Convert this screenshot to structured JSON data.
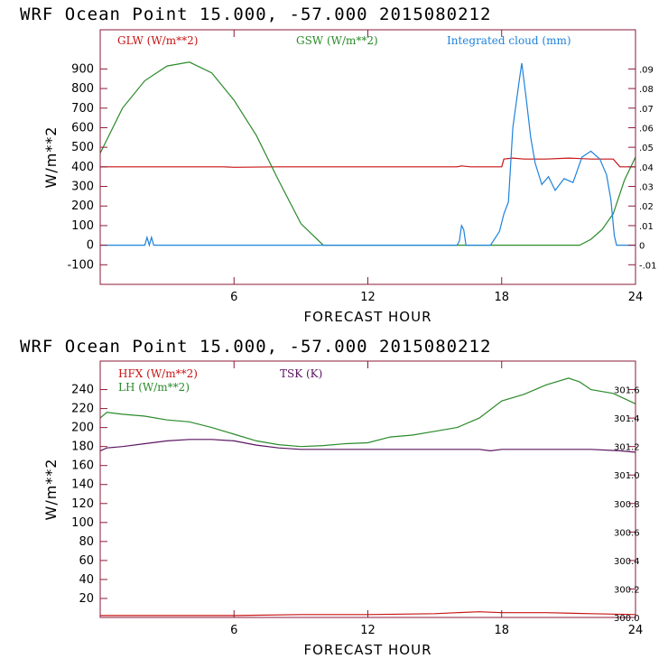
{
  "chart_data": [
    {
      "type": "line",
      "title": "WRF   Ocean Point   15.000, -57.000  2015080212",
      "xlabel": "FORECAST HOUR",
      "ylabel": "W/m**2",
      "xlim": [
        0,
        24
      ],
      "ylim": [
        -200,
        1100
      ],
      "xticks": [
        6,
        12,
        18,
        24
      ],
      "yticks": [
        -100,
        0,
        100,
        200,
        300,
        400,
        500,
        600,
        700,
        800,
        900
      ],
      "y2lim": [
        -0.02,
        0.11
      ],
      "y2ticks": [
        -0.01,
        0,
        0.01,
        0.02,
        0.03,
        0.04,
        0.05,
        0.06,
        0.07,
        0.08,
        0.09
      ],
      "y2ticklabels": [
        "-.01",
        "0",
        ".01",
        ".02",
        ".03",
        ".04",
        ".05",
        ".06",
        ".07",
        ".08",
        ".09"
      ],
      "axis_color": "#8b1a3a",
      "series": [
        {
          "name": "GLW (W/m**2)",
          "color": "#c81414",
          "axis": "left",
          "x": [
            0,
            2,
            4,
            5.5,
            6,
            8,
            10,
            12,
            14,
            16,
            16.2,
            16.6,
            17,
            18,
            18.1,
            18.5,
            19,
            20,
            21,
            22,
            23,
            23.3,
            24
          ],
          "y": [
            400,
            400,
            400,
            400,
            398,
            400,
            400,
            400,
            400,
            400,
            405,
            400,
            400,
            400,
            440,
            445,
            440,
            440,
            445,
            440,
            440,
            400,
            400
          ]
        },
        {
          "name": "GSW (W/m**2)",
          "color": "#2a8a2a",
          "axis": "left",
          "x": [
            0,
            1,
            2,
            3,
            4,
            5,
            6,
            7,
            8,
            9,
            10,
            10.3,
            12,
            14,
            16,
            18,
            20,
            21.5,
            22,
            22.5,
            23,
            23.5,
            24
          ],
          "y": [
            470,
            700,
            840,
            915,
            935,
            880,
            740,
            560,
            330,
            110,
            0,
            0,
            0,
            0,
            0,
            0,
            0,
            0,
            30,
            80,
            160,
            330,
            450
          ]
        },
        {
          "name": "Integrated cloud (mm)",
          "color": "#1e82dc",
          "axis": "right",
          "x": [
            0,
            2,
            2.1,
            2.2,
            2.3,
            2.4,
            16,
            16.1,
            16.2,
            16.3,
            16.4,
            16.5,
            17.5,
            17.9,
            18.1,
            18.3,
            18.5,
            18.8,
            18.9,
            19.1,
            19.3,
            19.5,
            19.8,
            20.1,
            20.4,
            20.8,
            21.2,
            21.6,
            22,
            22.4,
            22.7,
            22.9,
            23.05,
            23.15,
            24
          ],
          "y": [
            0,
            0,
            0.004,
            0,
            0.004,
            0,
            0,
            0.002,
            0.01,
            0.008,
            0,
            0,
            0,
            0.007,
            0.016,
            0.022,
            0.06,
            0.085,
            0.093,
            0.075,
            0.055,
            0.042,
            0.031,
            0.035,
            0.028,
            0.034,
            0.032,
            0.045,
            0.048,
            0.044,
            0.036,
            0.023,
            0.005,
            0,
            0
          ]
        }
      ]
    },
    {
      "type": "line",
      "title": "WRF   Ocean Point   15.000, -57.000  2015080212",
      "xlabel": "FORECAST HOUR",
      "ylabel": "W/m**2",
      "xlim": [
        0,
        24
      ],
      "ylim": [
        0,
        270
      ],
      "xticks": [
        6,
        12,
        18,
        24
      ],
      "yticks": [
        20,
        40,
        60,
        80,
        100,
        120,
        140,
        160,
        180,
        200,
        220,
        240
      ],
      "y2lim": [
        300.0,
        301.8
      ],
      "y2ticks": [
        300.0,
        300.2,
        300.4,
        300.6,
        300.8,
        301.0,
        301.2,
        301.4,
        301.6
      ],
      "y2ticklabels": [
        "300.0",
        "300.2",
        "300.4",
        "300.6",
        "300.8",
        "301.0",
        "301.2",
        "301.4",
        "301.6"
      ],
      "axis_color": "#8b1a3a",
      "series": [
        {
          "name": "HFX (W/m**2)",
          "color": "#c81414",
          "axis": "left",
          "x": [
            0,
            3,
            6,
            9,
            12,
            15,
            16,
            17,
            18,
            20,
            22,
            24
          ],
          "y": [
            2,
            2,
            2,
            3,
            3,
            4,
            5,
            6,
            5,
            5,
            4,
            3
          ]
        },
        {
          "name": "LH  (W/m**2)",
          "color": "#2a8a2a",
          "axis": "left",
          "x": [
            0,
            0.3,
            1,
            2,
            3,
            4,
            5,
            6,
            7,
            8,
            9,
            10,
            11,
            12,
            13,
            14,
            15,
            16,
            17,
            18,
            19,
            20,
            21,
            21.5,
            22,
            23,
            24
          ],
          "y": [
            210,
            216,
            214,
            212,
            208,
            206,
            200,
            193,
            186,
            182,
            180,
            181,
            183,
            184,
            190,
            192,
            196,
            200,
            210,
            228,
            235,
            245,
            252,
            248,
            240,
            236,
            225
          ]
        },
        {
          "name": "TSK (K)",
          "color": "#5a1460",
          "axis": "right",
          "x": [
            0,
            0.3,
            1,
            2,
            3,
            4,
            5,
            6,
            7,
            8,
            9,
            10,
            12,
            14,
            16,
            17,
            17.5,
            18,
            20,
            22,
            23.3,
            24
          ],
          "y": [
            301.17,
            301.19,
            301.2,
            301.22,
            301.24,
            301.25,
            301.25,
            301.24,
            301.21,
            301.19,
            301.18,
            301.18,
            301.18,
            301.18,
            301.18,
            301.18,
            301.17,
            301.18,
            301.18,
            301.18,
            301.17,
            301.16
          ]
        }
      ]
    }
  ]
}
